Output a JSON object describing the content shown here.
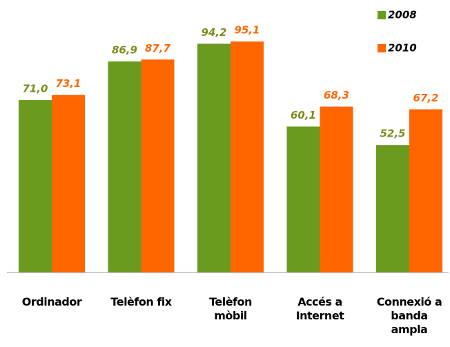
{
  "chart_data": {
    "type": "bar",
    "categories": [
      "Ordinador",
      "Telèfon fix",
      "Telèfon mòbil",
      "Accés a Internet",
      "Connexió a banda ampla"
    ],
    "series": [
      {
        "name": "2008",
        "color": "#6b9b1e",
        "values": [
          71.0,
          86.9,
          94.2,
          60.1,
          52.5
        ],
        "value_labels": [
          "71,0",
          "86,9",
          "94,2",
          "60,1",
          "52,5"
        ]
      },
      {
        "name": "2010",
        "color": "#ff6600",
        "values": [
          73.1,
          87.7,
          95.1,
          68.3,
          67.2
        ],
        "value_labels": [
          "73,1",
          "87,7",
          "95,1",
          "68,3",
          "67,2"
        ]
      }
    ],
    "ylim": [
      0,
      100
    ]
  }
}
